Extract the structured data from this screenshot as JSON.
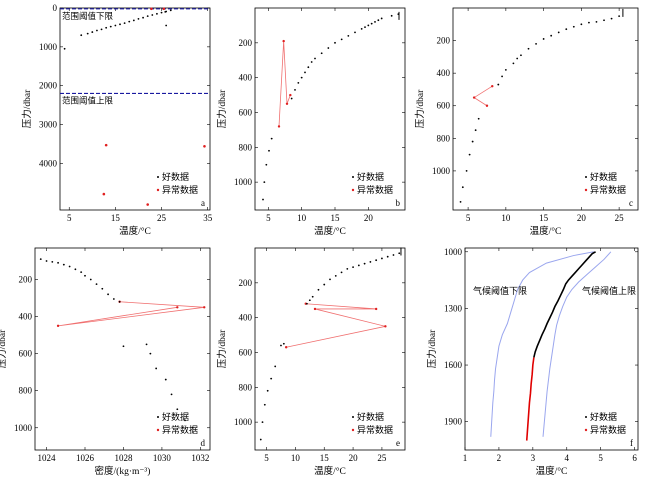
{
  "chart_data": [
    {
      "id": "a",
      "type": "scatter",
      "panel_label": "a",
      "xlabel": "温度/°C",
      "ylabel": "压力/dbar",
      "xlim": [
        3,
        35.5
      ],
      "ylim": [
        0,
        5200
      ],
      "y_inverted": true,
      "xticks": [
        5,
        15,
        25,
        35
      ],
      "yticks": [
        0,
        1000,
        2000,
        3000,
        4000
      ],
      "legend": [
        "好数据",
        "异常数据"
      ],
      "legend_position": "bottom-right",
      "hlines": [
        {
          "y": 20,
          "label": "范围阈值下限"
        },
        {
          "y": 2200,
          "label": "范围阈值上限"
        }
      ],
      "good": [
        [
          4,
          1050
        ],
        [
          7.6,
          700
        ],
        [
          9,
          660
        ],
        [
          10,
          620
        ],
        [
          11,
          580
        ],
        [
          12,
          550
        ],
        [
          13,
          510
        ],
        [
          14,
          480
        ],
        [
          15,
          450
        ],
        [
          16,
          420
        ],
        [
          17,
          390
        ],
        [
          18,
          350
        ],
        [
          19,
          320
        ],
        [
          20,
          280
        ],
        [
          21,
          250
        ],
        [
          22,
          210
        ],
        [
          23,
          180
        ],
        [
          24,
          150
        ],
        [
          25,
          120
        ],
        [
          26,
          90
        ],
        [
          27,
          60
        ],
        [
          26,
          450
        ],
        [
          25.8,
          100
        ]
      ],
      "anomaly": [
        [
          13,
          3530
        ],
        [
          12.5,
          4790
        ],
        [
          22,
          5060
        ],
        [
          34.3,
          3560
        ],
        [
          22.8,
          20
        ],
        [
          25.5,
          20
        ]
      ]
    },
    {
      "id": "b",
      "type": "line",
      "panel_label": "b",
      "xlabel": "温度/°C",
      "ylabel": "压力/dbar",
      "xlim": [
        3,
        25.5
      ],
      "ylim": [
        0,
        1160
      ],
      "y_inverted": true,
      "xticks": [
        5,
        10,
        15,
        20
      ],
      "yticks": [
        200,
        400,
        600,
        800,
        1000
      ],
      "legend": [
        "好数据",
        "异常数据"
      ],
      "legend_position": "bottom-right",
      "good": [
        [
          4.2,
          1100
        ],
        [
          4.4,
          1000
        ],
        [
          4.7,
          900
        ],
        [
          5.1,
          820
        ],
        [
          5.5,
          750
        ],
        [
          8.5,
          520
        ],
        [
          9,
          470
        ],
        [
          9.5,
          430
        ],
        [
          10,
          400
        ],
        [
          10.5,
          370
        ],
        [
          11,
          340
        ],
        [
          11.5,
          310
        ],
        [
          12,
          290
        ],
        [
          13,
          260
        ],
        [
          14,
          230
        ],
        [
          15,
          200
        ],
        [
          16,
          180
        ],
        [
          17,
          160
        ],
        [
          18,
          140
        ],
        [
          19,
          120
        ],
        [
          19.5,
          110
        ],
        [
          20,
          100
        ],
        [
          20.5,
          90
        ],
        [
          21,
          80
        ],
        [
          21.5,
          70
        ],
        [
          22,
          60
        ],
        [
          23.5,
          45
        ],
        [
          24.5,
          35
        ]
      ],
      "anomaly_path": [
        [
          6.6,
          680
        ],
        [
          7.3,
          190
        ],
        [
          7.8,
          550
        ],
        [
          8.3,
          500
        ]
      ],
      "marker": {
        "x": 24.6,
        "y": 45
      }
    },
    {
      "id": "c",
      "type": "line",
      "panel_label": "c",
      "xlabel": "温度/°C",
      "ylabel": "压力/dbar",
      "xlim": [
        3,
        27.5
      ],
      "ylim": [
        0,
        1240
      ],
      "y_inverted": true,
      "xticks": [
        5,
        10,
        15,
        20,
        25
      ],
      "yticks": [
        200,
        400,
        600,
        800,
        1000
      ],
      "legend": [
        "好数据",
        "异常数据"
      ],
      "legend_position": "bottom-right",
      "good": [
        [
          4,
          1190
        ],
        [
          4.3,
          1100
        ],
        [
          4.8,
          1000
        ],
        [
          5.2,
          900
        ],
        [
          5.6,
          820
        ],
        [
          6,
          750
        ],
        [
          6.4,
          680
        ],
        [
          9,
          470
        ],
        [
          9.5,
          420
        ],
        [
          10,
          380
        ],
        [
          11,
          340
        ],
        [
          11.5,
          310
        ],
        [
          12,
          290
        ],
        [
          13,
          250
        ],
        [
          14,
          220
        ],
        [
          15,
          190
        ],
        [
          16,
          170
        ],
        [
          17,
          150
        ],
        [
          18,
          130
        ],
        [
          19,
          115
        ],
        [
          20,
          100
        ],
        [
          21,
          90
        ],
        [
          22,
          85
        ],
        [
          23,
          75
        ],
        [
          24,
          65
        ],
        [
          25,
          50
        ]
      ],
      "anomaly_path": [
        [
          7.5,
          600
        ],
        [
          5.8,
          550
        ],
        [
          8.2,
          480
        ]
      ],
      "marker": {
        "x": 25.5,
        "y": 30
      }
    },
    {
      "id": "d",
      "type": "line",
      "panel_label": "d",
      "xlabel": "密度/(kg·m⁻³)",
      "ylabel": "压力/dbar",
      "xlim": [
        1023.4,
        1032.5
      ],
      "ylim": [
        30,
        1120
      ],
      "y_inverted": true,
      "xticks": [
        1024,
        1026,
        1028,
        1030,
        1032
      ],
      "yticks": [
        200,
        400,
        600,
        800,
        1000
      ],
      "legend": [
        "好数据",
        "异常数据"
      ],
      "legend_position": "bottom-right",
      "good": [
        [
          1023.7,
          90
        ],
        [
          1024,
          100
        ],
        [
          1024.3,
          105
        ],
        [
          1024.6,
          110
        ],
        [
          1024.9,
          120
        ],
        [
          1025.2,
          130
        ],
        [
          1025.5,
          145
        ],
        [
          1025.8,
          160
        ],
        [
          1026,
          180
        ],
        [
          1026.3,
          200
        ],
        [
          1026.6,
          225
        ],
        [
          1026.9,
          250
        ],
        [
          1027.2,
          280
        ],
        [
          1027.5,
          305
        ],
        [
          1027.8,
          320
        ],
        [
          1028,
          560
        ],
        [
          1029.2,
          550
        ],
        [
          1029.4,
          600
        ],
        [
          1029.7,
          680
        ],
        [
          1030.2,
          740
        ],
        [
          1030.5,
          820
        ],
        [
          1030.8,
          900
        ],
        [
          1031.2,
          960
        ],
        [
          1031.6,
          1000
        ]
      ],
      "anomaly_path": [
        [
          1027.8,
          320
        ],
        [
          1032.2,
          350
        ],
        [
          1024.6,
          450
        ],
        [
          1030.8,
          350
        ]
      ]
    },
    {
      "id": "e",
      "type": "line",
      "panel_label": "e",
      "xlabel": "温度/°C",
      "ylabel": "压力/dbar",
      "xlim": [
        3,
        29
      ],
      "ylim": [
        0,
        1160
      ],
      "y_inverted": true,
      "xticks": [
        5,
        10,
        15,
        20,
        25
      ],
      "yticks": [
        200,
        400,
        600,
        800,
        1000
      ],
      "legend": [
        "好数据",
        "异常数据"
      ],
      "legend_position": "bottom-right",
      "good": [
        [
          4,
          1100
        ],
        [
          4.3,
          1000
        ],
        [
          4.7,
          900
        ],
        [
          5.2,
          820
        ],
        [
          5.8,
          750
        ],
        [
          6.5,
          680
        ],
        [
          7.5,
          560
        ],
        [
          8,
          550
        ],
        [
          12,
          320
        ],
        [
          12.5,
          300
        ],
        [
          13,
          280
        ],
        [
          14,
          240
        ],
        [
          15,
          210
        ],
        [
          16,
          180
        ],
        [
          17,
          160
        ],
        [
          18,
          140
        ],
        [
          19,
          120
        ],
        [
          20,
          110
        ],
        [
          21,
          100
        ],
        [
          22,
          90
        ],
        [
          23,
          80
        ],
        [
          24,
          70
        ],
        [
          25,
          60
        ],
        [
          26,
          50
        ],
        [
          27,
          40
        ],
        [
          28,
          30
        ]
      ],
      "anomaly_path": [
        [
          11.8,
          320
        ],
        [
          24,
          350
        ],
        [
          13.4,
          350
        ],
        [
          25.6,
          450
        ],
        [
          8.4,
          570
        ]
      ],
      "marker": {
        "x": 28.3,
        "y": 20
      }
    },
    {
      "id": "f",
      "type": "line",
      "panel_label": "f",
      "xlabel": "温度/°C",
      "ylabel": "压力/dbar",
      "xlim": [
        1,
        6.1
      ],
      "ylim": [
        980,
        2050
      ],
      "y_inverted": true,
      "xticks": [
        1,
        2,
        3,
        4,
        5,
        6
      ],
      "yticks": [
        1000,
        1300,
        1600,
        1900
      ],
      "legend": [
        "好数据",
        "异常数据"
      ],
      "legend_position": "bottom-right",
      "annotations": [
        "气候阈值下限",
        "气候阈值上限"
      ],
      "good": [
        [
          4.85,
          1000
        ],
        [
          4.75,
          1010
        ],
        [
          4.65,
          1030
        ],
        [
          4.55,
          1050
        ],
        [
          4.45,
          1070
        ],
        [
          4.35,
          1090
        ],
        [
          4.25,
          1110
        ],
        [
          4.15,
          1130
        ],
        [
          4.05,
          1150
        ],
        [
          3.97,
          1170
        ],
        [
          3.9,
          1200
        ],
        [
          3.82,
          1230
        ],
        [
          3.74,
          1260
        ],
        [
          3.65,
          1290
        ],
        [
          3.58,
          1320
        ],
        [
          3.5,
          1350
        ],
        [
          3.42,
          1380
        ],
        [
          3.35,
          1410
        ],
        [
          3.27,
          1440
        ],
        [
          3.2,
          1470
        ],
        [
          3.13,
          1500
        ],
        [
          3.07,
          1530
        ],
        [
          3.03,
          1560
        ]
      ],
      "anomaly": [
        [
          3.03,
          1560
        ],
        [
          3,
          1600
        ],
        [
          2.98,
          1650
        ],
        [
          2.95,
          1700
        ],
        [
          2.93,
          1750
        ],
        [
          2.9,
          1800
        ],
        [
          2.88,
          1850
        ],
        [
          2.86,
          1900
        ],
        [
          2.84,
          1950
        ],
        [
          2.82,
          2000
        ]
      ],
      "threshold_low": [
        [
          4.8,
          1000
        ],
        [
          4.2,
          1020
        ],
        [
          3.4,
          1060
        ],
        [
          2.9,
          1110
        ],
        [
          2.7,
          1150
        ],
        [
          2.55,
          1200
        ],
        [
          2.45,
          1260
        ],
        [
          2.35,
          1320
        ],
        [
          2.25,
          1380
        ],
        [
          2.1,
          1440
        ],
        [
          2,
          1500
        ],
        [
          1.95,
          1560
        ],
        [
          1.9,
          1620
        ],
        [
          1.87,
          1680
        ],
        [
          1.85,
          1740
        ],
        [
          1.82,
          1800
        ],
        [
          1.8,
          1860
        ],
        [
          1.78,
          1920
        ],
        [
          1.76,
          1980
        ]
      ],
      "threshold_high": [
        [
          5.3,
          1000
        ],
        [
          5.1,
          1040
        ],
        [
          4.85,
          1080
        ],
        [
          4.6,
          1120
        ],
        [
          4.35,
          1160
        ],
        [
          4.15,
          1200
        ],
        [
          4,
          1240
        ],
        [
          3.88,
          1290
        ],
        [
          3.78,
          1340
        ],
        [
          3.7,
          1390
        ],
        [
          3.65,
          1440
        ],
        [
          3.6,
          1500
        ],
        [
          3.55,
          1560
        ],
        [
          3.5,
          1620
        ],
        [
          3.46,
          1680
        ],
        [
          3.42,
          1740
        ],
        [
          3.39,
          1800
        ],
        [
          3.36,
          1860
        ],
        [
          3.33,
          1920
        ],
        [
          3.3,
          1980
        ]
      ]
    }
  ]
}
